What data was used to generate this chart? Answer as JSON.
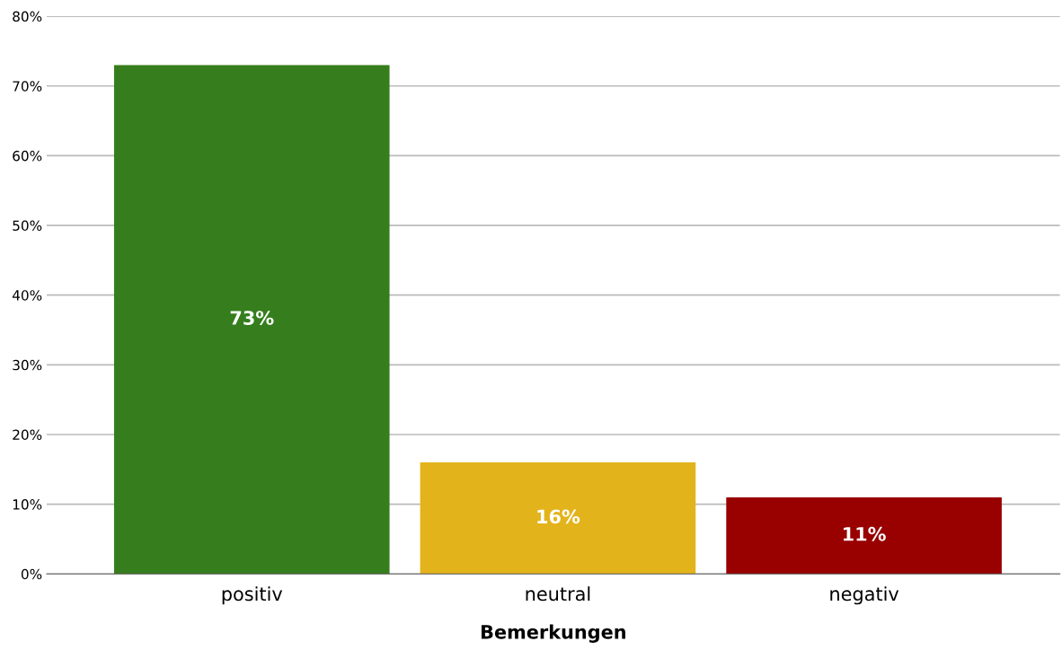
{
  "chart_data": {
    "type": "bar",
    "xlabel": "Bemerkungen",
    "categories": [
      "positiv",
      "neutral",
      "negativ"
    ],
    "values": [
      73,
      16,
      11
    ],
    "colors": [
      "#367e1d",
      "#e3b31c",
      "#990000"
    ],
    "value_labels": [
      "73%",
      "16%",
      "11%"
    ],
    "ylim": [
      0,
      80
    ],
    "yticks": [
      {
        "value": 0,
        "label": "0%"
      },
      {
        "value": 10,
        "label": "10%"
      },
      {
        "value": 20,
        "label": "20%"
      },
      {
        "value": 30,
        "label": "30%"
      },
      {
        "value": 40,
        "label": "40%"
      },
      {
        "value": 50,
        "label": "50%"
      },
      {
        "value": 60,
        "label": "60%"
      },
      {
        "value": 70,
        "label": "70%"
      },
      {
        "value": 80,
        "label": "80%"
      }
    ],
    "grid": "y",
    "legend": false
  }
}
